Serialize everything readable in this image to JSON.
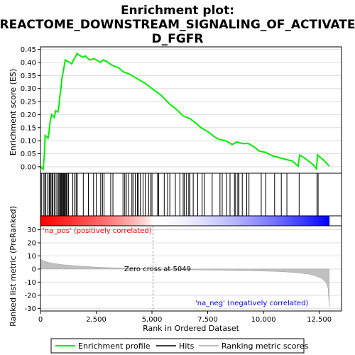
{
  "chart_data": {
    "type": "line",
    "title_line1": "Enrichment plot:",
    "title_line2": "REACTOME_DOWNSTREAM_SIGNALING_OF_ACTIVATE",
    "title_line3": "D_FGFR",
    "xlabel": "Rank in Ordered Dataset",
    "es_ylabel": "Enrichment score (ES)",
    "metric_ylabel": "Ranked list metric (PreRanked)",
    "xlim": [
      0,
      13500
    ],
    "es_ylim": [
      -0.025,
      0.46
    ],
    "metric_ylim": [
      -32,
      33
    ],
    "x_ticks": [
      0,
      2500,
      5000,
      7500,
      10000,
      12500
    ],
    "x_tick_labels": [
      "0",
      "2,500",
      "5,000",
      "7,500",
      "10,000",
      "12,500"
    ],
    "es_ticks": [
      0.0,
      0.05,
      0.1,
      0.15,
      0.2,
      0.25,
      0.3,
      0.35,
      0.4,
      0.45
    ],
    "es_tick_labels": [
      "0.00",
      "0.05",
      "0.10",
      "0.15",
      "0.20",
      "0.25",
      "0.30",
      "0.35",
      "0.40",
      "0.45"
    ],
    "metric_ticks": [
      30,
      20,
      10,
      0,
      -10,
      -20,
      -30
    ],
    "metric_tick_labels": [
      "30",
      "20",
      "10",
      "0",
      "-10",
      "-20",
      "-30"
    ],
    "n_genes": 12950,
    "zero_cross": 5049,
    "zero_cross_label": "Zero cross at 5049",
    "pos_label": "'na_pos' (positively correlated)",
    "neg_label": "'na_neg' (negatively correlated)",
    "legend": [
      "Enrichment profile",
      "Hits",
      "Ranking metric scores"
    ],
    "colors": {
      "es_line": "#00ee00",
      "hits": "#000000",
      "metric_fill": "#c0c0c0",
      "pos_label": "#ff0000",
      "neg_label": "#0000ff",
      "grid": "#dddddd"
    },
    "es_profile": [
      [
        0,
        0.0
      ],
      [
        120,
        -0.01
      ],
      [
        170,
        0.04
      ],
      [
        210,
        0.12
      ],
      [
        340,
        0.11
      ],
      [
        390,
        0.135
      ],
      [
        430,
        0.17
      ],
      [
        500,
        0.2
      ],
      [
        620,
        0.19
      ],
      [
        680,
        0.215
      ],
      [
        780,
        0.21
      ],
      [
        830,
        0.235
      ],
      [
        870,
        0.27
      ],
      [
        920,
        0.3
      ],
      [
        960,
        0.34
      ],
      [
        1010,
        0.36
      ],
      [
        1050,
        0.38
      ],
      [
        1110,
        0.41
      ],
      [
        1400,
        0.395
      ],
      [
        1480,
        0.41
      ],
      [
        1560,
        0.42
      ],
      [
        1640,
        0.435
      ],
      [
        1700,
        0.43
      ],
      [
        1900,
        0.42
      ],
      [
        2000,
        0.425
      ],
      [
        2200,
        0.41
      ],
      [
        2400,
        0.415
      ],
      [
        2600,
        0.405
      ],
      [
        2700,
        0.4
      ],
      [
        2800,
        0.41
      ],
      [
        2950,
        0.405
      ],
      [
        3200,
        0.39
      ],
      [
        3500,
        0.38
      ],
      [
        3700,
        0.365
      ],
      [
        4000,
        0.355
      ],
      [
        4200,
        0.345
      ],
      [
        4500,
        0.33
      ],
      [
        4700,
        0.32
      ],
      [
        5000,
        0.3
      ],
      [
        5400,
        0.275
      ],
      [
        5800,
        0.24
      ],
      [
        6100,
        0.22
      ],
      [
        6400,
        0.195
      ],
      [
        6700,
        0.185
      ],
      [
        7000,
        0.165
      ],
      [
        7200,
        0.15
      ],
      [
        7500,
        0.135
      ],
      [
        7800,
        0.115
      ],
      [
        8000,
        0.105
      ],
      [
        8300,
        0.1
      ],
      [
        8600,
        0.085
      ],
      [
        8800,
        0.095
      ],
      [
        9100,
        0.088
      ],
      [
        9300,
        0.09
      ],
      [
        9600,
        0.075
      ],
      [
        9800,
        0.06
      ],
      [
        10100,
        0.055
      ],
      [
        10400,
        0.042
      ],
      [
        10700,
        0.035
      ],
      [
        11000,
        0.028
      ],
      [
        11300,
        0.022
      ],
      [
        11550,
        0.002
      ],
      [
        11620,
        0.045
      ],
      [
        11900,
        0.03
      ],
      [
        12200,
        0.01
      ],
      [
        12380,
        -0.008
      ],
      [
        12420,
        0.045
      ],
      [
        12700,
        0.025
      ],
      [
        12950,
        0.002
      ]
    ],
    "hits": [
      40,
      130,
      190,
      240,
      320,
      390,
      420,
      470,
      520,
      560,
      620,
      700,
      760,
      820,
      860,
      900,
      930,
      960,
      1000,
      1030,
      1060,
      1090,
      1120,
      1160,
      1200,
      1260,
      1450,
      1530,
      1600,
      1650,
      1920,
      2150,
      2380,
      2500,
      2700,
      2780,
      2850,
      3150,
      3250,
      3700,
      3780,
      3850,
      3950,
      4100,
      4150,
      4250,
      4350,
      4380,
      4480,
      4600,
      4700,
      4850,
      4950,
      5000,
      5250,
      5300,
      5550,
      5700,
      5800,
      6050,
      6250,
      6400,
      6450,
      6550,
      6650,
      6700,
      6850,
      7050,
      7250,
      7350,
      7700,
      8050,
      8150,
      8350,
      8500,
      8700,
      8750,
      8850,
      8900,
      9050,
      9250,
      9350,
      9900,
      10100,
      10500,
      10800,
      11050,
      11600,
      12400,
      12450
    ],
    "metric_points": [
      [
        0,
        7.8
      ],
      [
        80,
        6.8
      ],
      [
        200,
        5.8
      ],
      [
        400,
        4.9
      ],
      [
        700,
        4.0
      ],
      [
        1000,
        3.3
      ],
      [
        1500,
        2.6
      ],
      [
        2000,
        2.0
      ],
      [
        2500,
        1.5
      ],
      [
        3000,
        1.1
      ],
      [
        3500,
        0.8
      ],
      [
        4000,
        0.5
      ],
      [
        4500,
        0.3
      ],
      [
        5049,
        0.0
      ],
      [
        5500,
        -0.3
      ],
      [
        6500,
        -0.55
      ],
      [
        7500,
        -0.8
      ],
      [
        8500,
        -1.05
      ],
      [
        9500,
        -1.35
      ],
      [
        10500,
        -1.8
      ],
      [
        11000,
        -2.2
      ],
      [
        11500,
        -2.8
      ],
      [
        12000,
        -3.8
      ],
      [
        12300,
        -5.0
      ],
      [
        12600,
        -7.0
      ],
      [
        12800,
        -10.0
      ],
      [
        12900,
        -15.0
      ],
      [
        12950,
        -29.0
      ]
    ]
  }
}
